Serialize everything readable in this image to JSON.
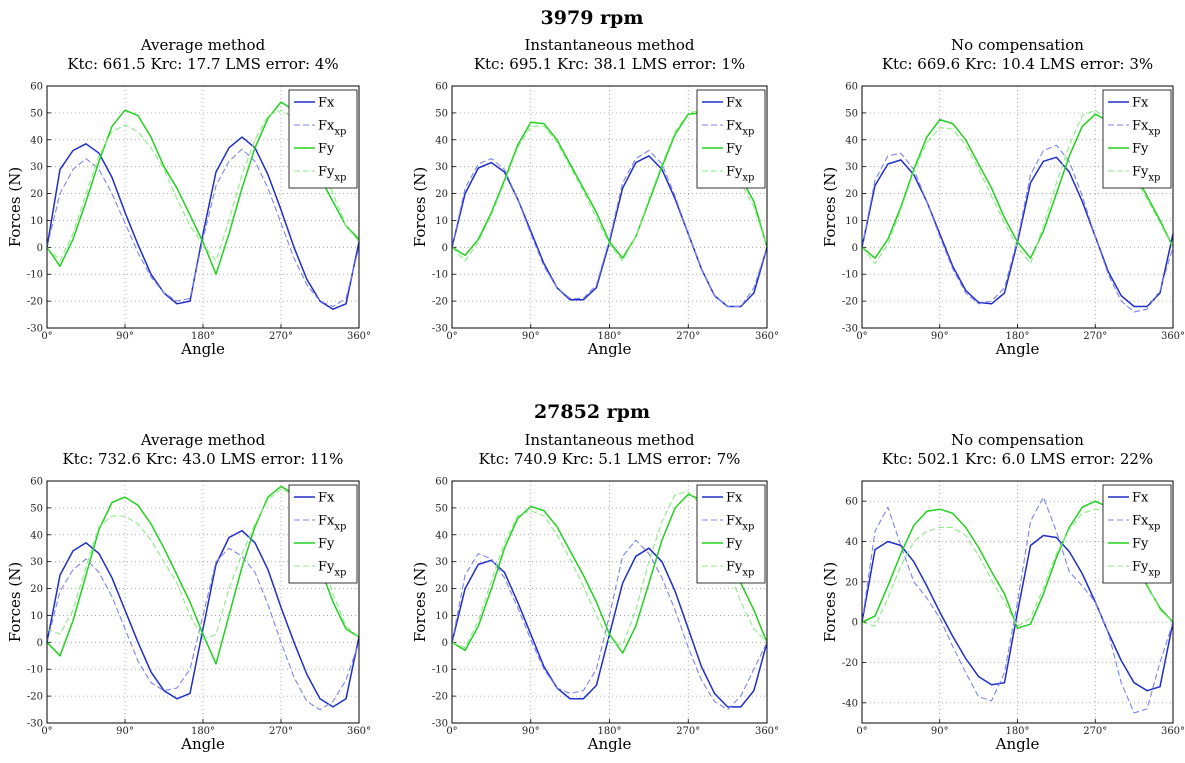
{
  "figure": {
    "sections": [
      {
        "title": "3979 rpm"
      },
      {
        "title": "27852 rpm"
      }
    ]
  },
  "colors": {
    "Fx": "#1f2ec8",
    "Fx_xp": "#7d84f0",
    "Fy": "#22d11f",
    "Fy_xp": "#8fea86",
    "grid": "#9a9a9a"
  },
  "chart_data": [
    {
      "type": "line",
      "section": "3979 rpm",
      "title": "Average method",
      "subtitle": "Ktc: 661.5  Krc: 17.7  LMS error: 4%",
      "xlabel": "Angle",
      "ylabel": "Forces (N)",
      "xlim": [
        0,
        360
      ],
      "ylim": [
        -30,
        60
      ],
      "xticks": [
        "0°",
        "90°",
        "180°",
        "270°",
        "360°"
      ],
      "yticks": [
        -30,
        -20,
        -10,
        0,
        10,
        20,
        30,
        40,
        50,
        60
      ],
      "grid": "dotted",
      "legend_position": "top-right",
      "x": [
        0,
        15,
        30,
        45,
        60,
        75,
        90,
        105,
        120,
        135,
        150,
        165,
        180,
        195,
        210,
        225,
        240,
        255,
        270,
        285,
        300,
        315,
        330,
        345,
        360
      ],
      "series": [
        {
          "name": "Fx",
          "sub": "",
          "style": "solid",
          "values": [
            0,
            29,
            36,
            38.5,
            35,
            26,
            13,
            1,
            -10,
            -17,
            -21,
            -20,
            5,
            28,
            37,
            41,
            37,
            27,
            14,
            0,
            -12,
            -20,
            -23,
            -21,
            2
          ]
        },
        {
          "name": "Fx",
          "sub": "xp",
          "style": "dashed",
          "values": [
            0,
            20,
            29,
            33,
            29,
            20,
            9,
            -2,
            -11,
            -17,
            -20,
            -19,
            3,
            23,
            32,
            36.5,
            32,
            22,
            9,
            -4,
            -14,
            -20,
            -22,
            -19,
            0
          ]
        },
        {
          "name": "Fy",
          "sub": "",
          "style": "solid",
          "values": [
            0,
            -7,
            3,
            17,
            32,
            45,
            51,
            49,
            41,
            30,
            22,
            12,
            2,
            -10,
            5,
            22,
            37,
            48,
            54,
            51,
            40,
            26,
            17,
            8,
            3
          ]
        },
        {
          "name": "Fy",
          "sub": "xp",
          "style": "dashed",
          "values": [
            0,
            -5,
            5,
            20,
            34,
            43,
            45.5,
            43,
            37,
            29,
            18,
            8,
            1,
            -5,
            10,
            27,
            40,
            49,
            51,
            48,
            42,
            32,
            20,
            8,
            2
          ]
        }
      ]
    },
    {
      "type": "line",
      "section": "3979 rpm",
      "title": "Instantaneous method",
      "subtitle": "Ktc: 695.1  Krc: 38.1  LMS error: 1%",
      "xlabel": "Angle",
      "ylabel": "Forces (N)",
      "xlim": [
        0,
        360
      ],
      "ylim": [
        -30,
        60
      ],
      "xticks": [
        "0°",
        "90°",
        "180°",
        "270°",
        "360°"
      ],
      "yticks": [
        -30,
        -20,
        -10,
        0,
        10,
        20,
        30,
        40,
        50,
        60
      ],
      "grid": "dotted",
      "legend_position": "top-right",
      "x": [
        0,
        15,
        30,
        45,
        60,
        75,
        90,
        105,
        120,
        135,
        150,
        165,
        180,
        195,
        210,
        225,
        240,
        255,
        270,
        285,
        300,
        315,
        330,
        345,
        360
      ],
      "series": [
        {
          "name": "Fx",
          "sub": "",
          "style": "solid",
          "values": [
            0,
            20,
            29.5,
            31.5,
            28,
            18,
            6,
            -6,
            -15,
            -19.5,
            -19.5,
            -15,
            2,
            22,
            31.5,
            34,
            29,
            18,
            5,
            -8,
            -18,
            -22,
            -22,
            -17,
            0
          ]
        },
        {
          "name": "Fx",
          "sub": "xp",
          "style": "dashed",
          "values": [
            0,
            22,
            31,
            33,
            29,
            18,
            5,
            -7,
            -15,
            -19,
            -19,
            -14,
            3,
            24,
            33,
            36,
            31,
            19,
            5,
            -8,
            -18,
            -22,
            -22,
            -15,
            0
          ]
        },
        {
          "name": "Fy",
          "sub": "",
          "style": "solid",
          "values": [
            0,
            -3,
            3,
            13,
            25,
            38,
            46.5,
            46,
            40,
            31,
            22,
            13,
            2,
            -4,
            4,
            17,
            30,
            42,
            49.5,
            50,
            45,
            35,
            26,
            17,
            0
          ]
        },
        {
          "name": "Fy",
          "sub": "xp",
          "style": "dashed",
          "values": [
            0,
            -5,
            2,
            12,
            24,
            37,
            45,
            45,
            39,
            30,
            21,
            11,
            1,
            -5,
            4,
            18,
            31,
            43,
            50,
            51,
            44,
            33,
            24,
            15,
            0
          ]
        }
      ]
    },
    {
      "type": "line",
      "section": "3979 rpm",
      "title": "No compensation",
      "subtitle": "Ktc: 669.6  Krc: 10.4  LMS error: 3%",
      "xlabel": "Angle",
      "ylabel": "Forces (N)",
      "xlim": [
        0,
        360
      ],
      "ylim": [
        -30,
        60
      ],
      "xticks": [
        "0°",
        "90°",
        "180°",
        "270°",
        "360°"
      ],
      "yticks": [
        -30,
        -20,
        -10,
        0,
        10,
        20,
        30,
        40,
        50,
        60
      ],
      "grid": "dotted",
      "legend_position": "top-right",
      "x": [
        0,
        15,
        30,
        45,
        60,
        75,
        90,
        105,
        120,
        135,
        150,
        165,
        180,
        195,
        210,
        225,
        240,
        255,
        270,
        285,
        300,
        315,
        330,
        345,
        360
      ],
      "series": [
        {
          "name": "Fx",
          "sub": "",
          "style": "solid",
          "values": [
            0,
            23,
            31,
            32.5,
            27,
            17,
            5,
            -7,
            -16,
            -20.5,
            -21,
            -17,
            2,
            24,
            32,
            33.5,
            28,
            17,
            4,
            -9,
            -18,
            -22,
            -22,
            -17,
            5
          ]
        },
        {
          "name": "Fx",
          "sub": "xp",
          "style": "dashed",
          "values": [
            0,
            25,
            34,
            35,
            29,
            17,
            4,
            -8,
            -17,
            -21,
            -20,
            -15,
            3,
            27,
            36,
            38,
            32,
            19,
            4,
            -10,
            -20,
            -24,
            -23,
            -16,
            0
          ]
        },
        {
          "name": "Fy",
          "sub": "",
          "style": "solid",
          "values": [
            0,
            -4,
            3,
            15,
            29,
            41,
            47.5,
            46,
            40,
            31,
            22,
            11,
            2,
            -4,
            6,
            20,
            34,
            45,
            49.5,
            47,
            38,
            28,
            19,
            10,
            0
          ]
        },
        {
          "name": "Fy",
          "sub": "xp",
          "style": "dashed",
          "values": [
            0,
            -6,
            1,
            14,
            28,
            39,
            44.5,
            44,
            38,
            29,
            19,
            9,
            0,
            -6,
            8,
            24,
            38,
            49,
            51,
            47,
            37,
            26,
            18,
            9,
            0
          ]
        }
      ]
    },
    {
      "type": "line",
      "section": "27852 rpm",
      "title": "Average method",
      "subtitle": "Ktc: 732.6  Krc: 43.0  LMS error: 11%",
      "xlabel": "Angle",
      "ylabel": "Forces (N)",
      "xlim": [
        0,
        360
      ],
      "ylim": [
        -30,
        60
      ],
      "xticks": [
        "0°",
        "90°",
        "180°",
        "270°",
        "360°"
      ],
      "yticks": [
        -30,
        -20,
        -10,
        0,
        10,
        20,
        30,
        40,
        50,
        60
      ],
      "grid": "dotted",
      "legend_position": "top-right",
      "x": [
        0,
        15,
        30,
        45,
        60,
        75,
        90,
        105,
        120,
        135,
        150,
        165,
        180,
        195,
        210,
        225,
        240,
        255,
        270,
        285,
        300,
        315,
        330,
        345,
        360
      ],
      "series": [
        {
          "name": "Fx",
          "sub": "",
          "style": "solid",
          "values": [
            0,
            25,
            34,
            37,
            33,
            24,
            12,
            0,
            -11,
            -18,
            -21,
            -19,
            5,
            29,
            39,
            41.5,
            37,
            27,
            13,
            0,
            -12,
            -21,
            -24,
            -21,
            2
          ]
        },
        {
          "name": "Fx",
          "sub": "xp",
          "style": "dashed",
          "values": [
            0,
            19,
            27,
            31,
            26,
            17,
            5,
            -7,
            -15,
            -18,
            -17,
            -10,
            10,
            30,
            35,
            32,
            26,
            14,
            0,
            -13,
            -22,
            -25,
            -22,
            -14,
            0
          ]
        },
        {
          "name": "Fy",
          "sub": "",
          "style": "solid",
          "values": [
            0,
            -5,
            8,
            25,
            42,
            52,
            54,
            51,
            44,
            35,
            25,
            15,
            3,
            -8,
            10,
            28,
            43,
            54,
            58,
            55,
            43,
            28,
            15,
            5,
            2
          ]
        },
        {
          "name": "Fy",
          "sub": "xp",
          "style": "dashed",
          "values": [
            5,
            3,
            12,
            28,
            43,
            47,
            47,
            44,
            38,
            30,
            22,
            10,
            1,
            3,
            20,
            33,
            44,
            53,
            57,
            55,
            46,
            33,
            18,
            6,
            2
          ]
        }
      ]
    },
    {
      "type": "line",
      "section": "27852 rpm",
      "title": "Instantaneous method",
      "subtitle": "Ktc: 740.9  Krc: 5.1  LMS error: 7%",
      "xlabel": "Angle",
      "ylabel": "Forces (N)",
      "xlim": [
        0,
        360
      ],
      "ylim": [
        -30,
        60
      ],
      "xticks": [
        "0°",
        "90°",
        "180°",
        "270°",
        "360°"
      ],
      "yticks": [
        -30,
        -20,
        -10,
        0,
        10,
        20,
        30,
        40,
        50,
        60
      ],
      "grid": "dotted",
      "legend_position": "top-right",
      "x": [
        0,
        15,
        30,
        45,
        60,
        75,
        90,
        105,
        120,
        135,
        150,
        165,
        180,
        195,
        210,
        225,
        240,
        255,
        270,
        285,
        300,
        315,
        330,
        345,
        360
      ],
      "series": [
        {
          "name": "Fx",
          "sub": "",
          "style": "solid",
          "values": [
            0,
            20,
            29,
            30.5,
            26,
            15,
            3,
            -9,
            -17,
            -21,
            -21,
            -16,
            3,
            22,
            32,
            35,
            30,
            19,
            5,
            -9,
            -19,
            -24,
            -24,
            -18,
            0
          ]
        },
        {
          "name": "Fx",
          "sub": "xp",
          "style": "dashed",
          "values": [
            0,
            25,
            33,
            31,
            24,
            13,
            1,
            -10,
            -17,
            -19,
            -18,
            -10,
            10,
            32,
            38,
            33,
            24,
            12,
            -2,
            -14,
            -22,
            -25,
            -20,
            -10,
            0
          ]
        },
        {
          "name": "Fy",
          "sub": "",
          "style": "solid",
          "values": [
            0,
            -3,
            6,
            20,
            35,
            46,
            50.5,
            49,
            43,
            34,
            25,
            15,
            3,
            -4,
            6,
            22,
            38,
            50,
            55,
            53,
            44,
            33,
            22,
            12,
            0
          ]
        },
        {
          "name": "Fy",
          "sub": "xp",
          "style": "dashed",
          "values": [
            0,
            -2,
            8,
            23,
            37,
            47,
            49,
            47,
            40,
            31,
            21,
            10,
            0,
            -1,
            12,
            30,
            45,
            55,
            56,
            51,
            41,
            28,
            15,
            5,
            0
          ]
        }
      ]
    },
    {
      "type": "line",
      "section": "27852 rpm",
      "title": "No compensation",
      "subtitle": "Ktc: 502.1  Krc: 6.0  LMS error: 22%",
      "xlabel": "Angle",
      "ylabel": "Forces (N)",
      "xlim": [
        0,
        360
      ],
      "ylim": [
        -50,
        70
      ],
      "xticks": [
        "0°",
        "90°",
        "180°",
        "270°",
        "360°"
      ],
      "yticks": [
        -40,
        -20,
        0,
        20,
        40,
        60
      ],
      "grid": "dotted",
      "legend_position": "top-right",
      "x": [
        0,
        15,
        30,
        45,
        60,
        75,
        90,
        105,
        120,
        135,
        150,
        165,
        180,
        195,
        210,
        225,
        240,
        255,
        270,
        285,
        300,
        315,
        330,
        345,
        360
      ],
      "series": [
        {
          "name": "Fx",
          "sub": "",
          "style": "solid",
          "values": [
            0,
            36,
            40,
            38,
            30,
            18,
            5,
            -7,
            -18,
            -27,
            -31,
            -30,
            5,
            38,
            43,
            42,
            35,
            24,
            10,
            -5,
            -19,
            -30,
            -34,
            -32,
            0
          ]
        },
        {
          "name": "Fx",
          "sub": "xp",
          "style": "dashed",
          "values": [
            0,
            45,
            57,
            38,
            20,
            12,
            2,
            -12,
            -25,
            -37,
            -39,
            -25,
            10,
            50,
            62,
            45,
            25,
            18,
            10,
            -5,
            -30,
            -45,
            -43,
            -20,
            0
          ]
        },
        {
          "name": "Fy",
          "sub": "",
          "style": "solid",
          "values": [
            0,
            3,
            18,
            34,
            48,
            55,
            56,
            54,
            47,
            37,
            25,
            14,
            -3,
            -1,
            14,
            32,
            47,
            57,
            60,
            57,
            46,
            33,
            18,
            7,
            0
          ]
        },
        {
          "name": "Fy",
          "sub": "xp",
          "style": "dashed",
          "values": [
            0,
            -2,
            12,
            28,
            40,
            45,
            47,
            47,
            43,
            33,
            21,
            10,
            -2,
            2,
            17,
            34,
            46,
            54,
            56,
            55,
            47,
            34,
            19,
            6,
            0
          ]
        }
      ]
    }
  ]
}
